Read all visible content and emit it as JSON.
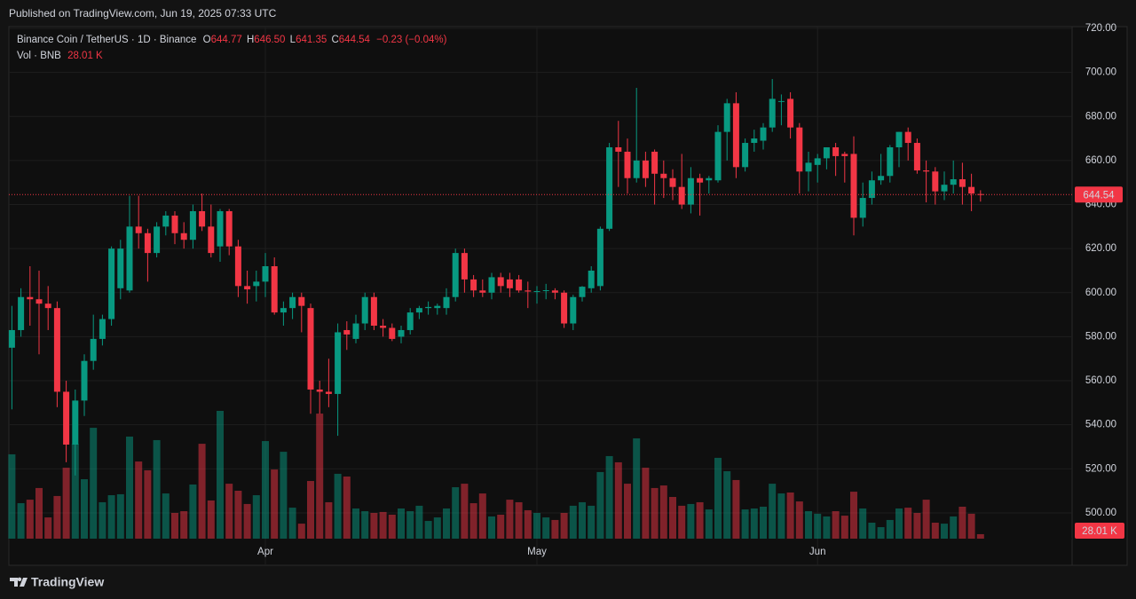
{
  "header": {
    "published": "Published on TradingView.com, Jun 19, 2025 07:33 UTC"
  },
  "footer": {
    "brand": "TradingView"
  },
  "legend": {
    "symbol": "Binance Coin / TetherUS · 1D · Binance",
    "ohlc": [
      {
        "key": "O",
        "value": "644.77"
      },
      {
        "key": "H",
        "value": "646.50"
      },
      {
        "key": "L",
        "value": "641.35"
      },
      {
        "key": "C",
        "value": "644.54"
      }
    ],
    "change": "−0.23 (−0.04%)",
    "volume_title": "Vol · BNB"
  },
  "chart_data": {
    "type": "candlestick",
    "categories": [
      null,
      null,
      null,
      null,
      null,
      null,
      null,
      null,
      null,
      null,
      null,
      null,
      null,
      null,
      null,
      null,
      null,
      null,
      null,
      null,
      null,
      null,
      null,
      null,
      null,
      null,
      null,
      null,
      "Apr",
      null,
      null,
      null,
      null,
      null,
      null,
      null,
      null,
      null,
      null,
      null,
      null,
      null,
      null,
      null,
      null,
      null,
      null,
      null,
      null,
      null,
      null,
      null,
      null,
      null,
      null,
      null,
      null,
      null,
      "May",
      null,
      null,
      null,
      null,
      null,
      null,
      null,
      null,
      null,
      null,
      null,
      null,
      null,
      null,
      null,
      null,
      null,
      null,
      null,
      null,
      null,
      null,
      null,
      null,
      null,
      null,
      null,
      null,
      null,
      null,
      "Jun",
      null,
      null,
      null,
      null,
      null,
      null,
      null,
      null,
      null,
      null,
      null,
      null,
      null,
      null,
      null,
      null,
      null,
      null
    ],
    "open": [
      575,
      583,
      598,
      597,
      595,
      593,
      555,
      531,
      551,
      569,
      579,
      588,
      602,
      601,
      630,
      627,
      618,
      630,
      635,
      627,
      624,
      637,
      630,
      621,
      637,
      621,
      603,
      603,
      605,
      612,
      591,
      593,
      598,
      593,
      556,
      555,
      554,
      583,
      579,
      586,
      598,
      585,
      584,
      580,
      583,
      591,
      593,
      593,
      593,
      598,
      618,
      606,
      601,
      600,
      607,
      606,
      606,
      601,
      600.5,
      601,
      601,
      600,
      586,
      598,
      602,
      603,
      629,
      666,
      664,
      652,
      660,
      664,
      654,
      652,
      648,
      640,
      652,
      651,
      651,
      673,
      686,
      657,
      668,
      669,
      675,
      687,
      688,
      675,
      655,
      658,
      661,
      666,
      663,
      663,
      634,
      643,
      651,
      653,
      666,
      673,
      668,
      655.5,
      655,
      646,
      649,
      651.5,
      648,
      644.77
    ],
    "high": [
      594,
      602,
      612,
      610,
      603,
      596,
      560,
      556,
      572,
      590,
      590,
      621,
      624,
      644,
      644,
      629,
      632,
      637,
      637,
      632,
      640,
      645,
      640,
      638,
      638,
      624,
      610,
      610,
      618,
      616,
      596,
      600,
      600,
      595,
      560,
      570,
      586,
      587,
      590,
      600,
      600,
      588,
      586,
      585,
      593,
      594,
      596,
      595,
      602,
      620,
      620,
      608,
      606,
      609,
      609,
      609,
      608,
      605,
      603,
      604,
      602,
      601,
      599,
      603,
      612,
      630,
      668,
      678,
      670,
      693,
      664,
      665,
      660,
      656,
      663,
      657,
      654,
      653,
      676,
      688,
      691,
      670,
      674,
      677,
      697,
      690,
      691,
      677,
      664,
      663,
      666,
      668,
      664,
      671,
      650,
      655,
      663,
      667,
      673,
      675,
      670,
      660,
      657,
      655,
      660,
      659,
      654,
      646.5
    ],
    "low": [
      547,
      580,
      585,
      572,
      583,
      548,
      523,
      517,
      544,
      565,
      576,
      585,
      597,
      600,
      620,
      605,
      616,
      626,
      622,
      620,
      620,
      628,
      616,
      614,
      617,
      598,
      595,
      596,
      598,
      590,
      585,
      588,
      582,
      545,
      545,
      548,
      535,
      574,
      577,
      583,
      583,
      580,
      578,
      577,
      581,
      588,
      590,
      590,
      590,
      596,
      600,
      598,
      598,
      597,
      600,
      598,
      600,
      593,
      595,
      597,
      597,
      584,
      583,
      596,
      600,
      601,
      628,
      648,
      645,
      650,
      648,
      640,
      643,
      642,
      638,
      636,
      635,
      645,
      650,
      660,
      652,
      655,
      664,
      665,
      673,
      676,
      670,
      645,
      646,
      650,
      656,
      653,
      650,
      626,
      630,
      640,
      649,
      650,
      657,
      660,
      654,
      641,
      640,
      642,
      645,
      640,
      637,
      641.35
    ],
    "close": [
      583,
      598,
      597,
      595,
      593,
      555,
      531,
      551,
      569,
      579,
      588,
      620,
      620,
      630,
      627,
      618,
      630,
      635,
      627,
      624,
      637,
      630,
      618,
      637,
      621,
      603,
      601.5,
      605,
      612,
      591,
      593,
      598,
      594,
      556,
      555,
      554,
      582,
      581,
      586,
      598,
      585,
      584,
      579,
      583,
      591,
      593,
      593.5,
      594,
      598,
      618,
      606,
      601,
      600,
      607,
      603,
      602,
      601,
      600.5,
      600.7,
      601.1,
      600,
      586,
      598,
      602.7,
      610,
      629,
      666,
      664,
      652,
      660,
      652,
      654,
      652,
      648,
      640,
      652,
      650,
      652,
      673,
      686,
      657,
      668,
      670,
      675,
      688,
      687,
      675,
      655,
      659,
      661,
      666,
      662,
      662,
      634,
      643,
      651,
      653,
      666,
      673,
      668,
      655.5,
      655,
      646,
      649,
      651.5,
      648,
      645,
      644.54
    ],
    "volume": [
      528,
      222,
      244,
      317,
      133,
      267,
      444,
      594,
      372,
      694,
      228,
      272,
      278,
      639,
      483,
      428,
      617,
      283,
      161,
      172,
      339,
      594,
      239,
      800,
      344,
      300,
      217,
      272,
      611,
      433,
      544,
      194,
      94,
      361,
      783,
      228,
      406,
      389,
      189,
      172,
      161,
      167,
      150,
      189,
      172,
      206,
      111,
      133,
      189,
      322,
      344,
      222,
      283,
      139,
      150,
      244,
      228,
      178,
      161,
      133,
      117,
      161,
      206,
      228,
      206,
      417,
      517,
      478,
      344,
      628,
      444,
      317,
      333,
      261,
      206,
      217,
      228,
      183,
      506,
      422,
      367,
      183,
      189,
      200,
      344,
      283,
      289,
      233,
      172,
      156,
      139,
      172,
      144,
      294,
      189,
      100,
      72,
      117,
      189,
      194,
      161,
      244,
      100,
      94,
      139,
      200,
      156,
      28.01
    ],
    "volume_last_label": "28.01 K",
    "up_color": "#089981",
    "down_color": "#f23645",
    "ylim": [
      476.2,
      720.8
    ],
    "yticks": [
      {
        "value": 500,
        "label": "500.00"
      },
      {
        "value": 520,
        "label": "520.00"
      },
      {
        "value": 540,
        "label": "540.00"
      },
      {
        "value": 560,
        "label": "560.00"
      },
      {
        "value": 580,
        "label": "580.00"
      },
      {
        "value": 600,
        "label": "600.00"
      },
      {
        "value": 620,
        "label": "620.00"
      },
      {
        "value": 640,
        "label": "640.00"
      },
      {
        "value": 660,
        "label": "660.00"
      },
      {
        "value": 680,
        "label": "680.00"
      },
      {
        "value": 700,
        "label": "700.00"
      },
      {
        "value": 720,
        "label": "720.00"
      }
    ],
    "volume_ylim": [
      0,
      1000
    ],
    "grid": true
  }
}
